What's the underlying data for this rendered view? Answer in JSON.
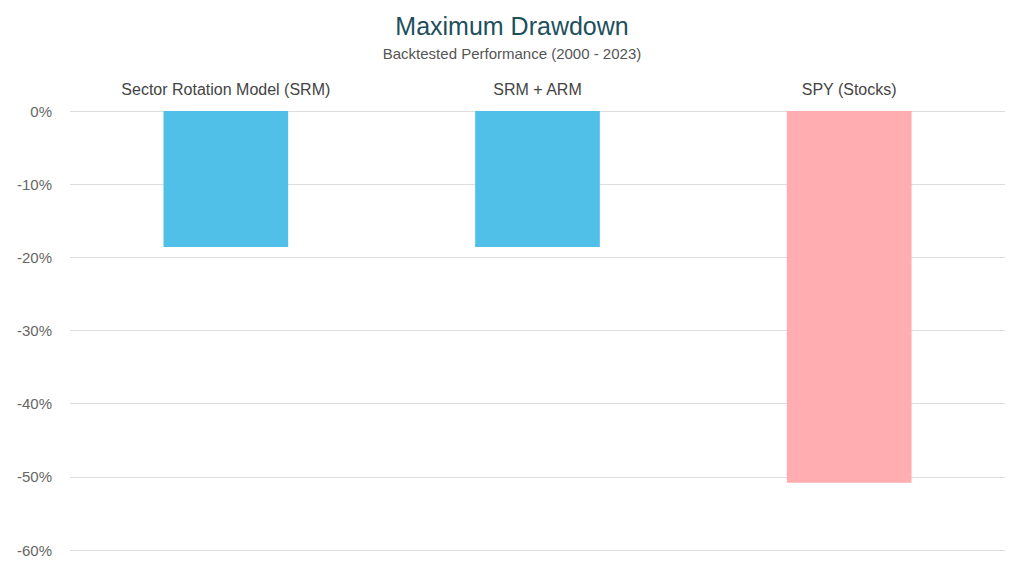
{
  "chart_data": {
    "type": "bar",
    "title": "Maximum Drawdown",
    "subtitle": "Backtested Performance (2000 - 2023)",
    "categories": [
      "Sector Rotation Model (SRM)",
      "SRM + ARM",
      "SPY (Stocks)"
    ],
    "values": [
      -18.6,
      -18.6,
      -50.8
    ],
    "colors": [
      "#50c0e8",
      "#50c0e8",
      "#ffadb0"
    ],
    "ylim": [
      -60,
      0
    ],
    "yticks": [
      {
        "value": -60,
        "label": "-60%"
      },
      {
        "value": -50,
        "label": "-50%"
      },
      {
        "value": -40,
        "label": "-40%"
      },
      {
        "value": -30,
        "label": "-30%"
      },
      {
        "value": -20,
        "label": "-20%"
      },
      {
        "value": -10,
        "label": "-10%"
      },
      {
        "value": 0,
        "label": "0%"
      }
    ],
    "grid": true
  }
}
